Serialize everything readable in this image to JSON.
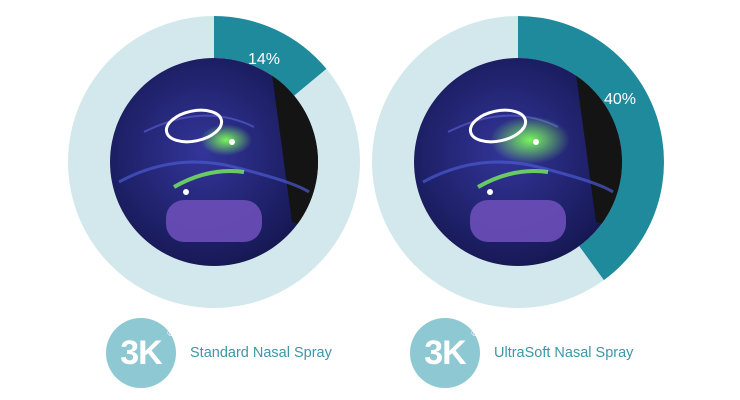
{
  "colors": {
    "highlight": "#1e8a9c",
    "ring": "#d3e8ec",
    "logo_bg": "#8ec8d2",
    "label_text": "#3c97a6",
    "scan_bg": "#232579",
    "scan_glow": "#7dff5a",
    "scan_shadow": "#141414"
  },
  "chart_data": [
    {
      "type": "pie",
      "categories": [
        "",
        ""
      ],
      "values": [
        14,
        86
      ],
      "data_labels": [
        "14%",
        ""
      ],
      "product": "Standard Nasal Spray"
    },
    {
      "type": "pie",
      "categories": [
        "",
        ""
      ],
      "values": [
        40,
        60
      ],
      "data_labels": [
        "40%",
        ""
      ],
      "product": "UltraSoft Nasal Spray"
    }
  ],
  "panels": [
    {
      "logo_text": "3K",
      "logo_mark": "®",
      "product_name": "Standard Nasal Spray",
      "percent_label": "14%"
    },
    {
      "logo_text": "3K",
      "logo_mark": "®",
      "product_name": "UltraSoft Nasal Spray",
      "percent_label": "40%"
    }
  ]
}
